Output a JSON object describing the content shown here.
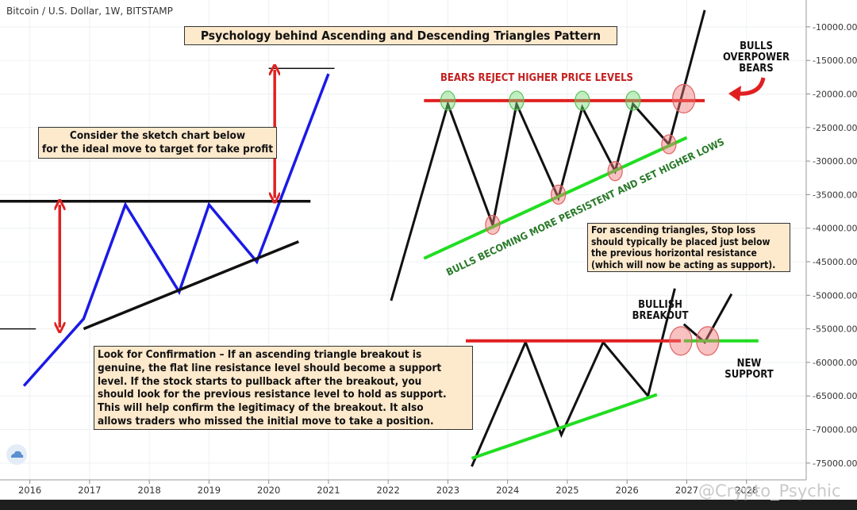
{
  "header": {
    "symbol": "Bitcoin / U.S. Dollar, 1W, BITSTAMP"
  },
  "title": "Psychology behind  Ascending and Descending Triangles Pattern",
  "annotations": {
    "sketch": [
      "Consider the sketch chart below",
      "for the ideal move to target for take profit"
    ],
    "confirmation": [
      "Look for Confirmation – If an ascending triangle breakout is",
      "genuine, the flat line resistance level should become a support",
      "level. If the stock starts to pullback after the breakout, you",
      "should look for the previous resistance level to hold as support.",
      "This will help confirm the legitimacy of the breakout. It also",
      "allows traders who missed the initial move to take a position."
    ],
    "stoploss": [
      "For ascending triangles, Stop loss",
      "should typically be placed just below",
      "the previous horizontal resistance",
      "(which will now be acting as support)."
    ],
    "bears_reject": "BEARS REJECT HIGHER PRICE LEVELS",
    "bulls_persistent": "BULLS BECOMING MORE PERSISTENT AND SET HIGHER LOWS",
    "bulls_overpower": [
      "BULLS",
      "OVERPOWER",
      "BEARS"
    ],
    "bullish_breakout": [
      "BULLISH",
      "BREAKOUT"
    ],
    "new_support": [
      "NEW",
      "SUPPORT"
    ]
  },
  "watermark": "@Crypto_Psychic",
  "colors": {
    "blue": "#1a1ae6",
    "red": "#e02020",
    "green": "#22dd22",
    "black": "#111111",
    "box": "#fde9cc"
  },
  "chart_data": {
    "type": "line",
    "x_ticks": [
      "2016",
      "2017",
      "2018",
      "2019",
      "2020",
      "2021",
      "2022",
      "2023",
      "2024",
      "2025",
      "2026",
      "2027",
      "2028"
    ],
    "y_ticks": [
      "-10000.00",
      "-15000.00",
      "-20000.00",
      "-25000.00",
      "-30000.00",
      "-35000.00",
      "-40000.00",
      "-45000.00",
      "-50000.00",
      "-55000.00",
      "-60000.00",
      "-65000.00",
      "-70000.00",
      "-75000.00"
    ],
    "ylim": [
      -77500,
      -6000
    ],
    "xlim": [
      2015.5,
      2029.0
    ],
    "series": [
      {
        "role": "left-blue-path",
        "x": [
          2015.9,
          2016.9,
          2017.6,
          2018.5,
          2019.0,
          2019.8,
          2021.0
        ],
        "y": [
          -63500,
          -53500,
          -36500,
          -49500,
          -36500,
          -45000,
          -17000
        ]
      },
      {
        "role": "left-resistance",
        "x": [
          2015.5,
          2020.7
        ],
        "y": [
          -36000,
          -36000
        ]
      },
      {
        "role": "left-support",
        "x": [
          2016.9,
          2020.5
        ],
        "y": [
          -55000,
          -42000
        ]
      },
      {
        "role": "left-target",
        "x": [
          2020.0,
          2021.1
        ],
        "y": [
          -16200,
          -16200
        ]
      },
      {
        "role": "left-base",
        "x": [
          2015.4,
          2016.1
        ],
        "y": [
          -55000,
          -55000
        ]
      },
      {
        "role": "top-right-path",
        "x": [
          2022.05,
          2023.0,
          2023.75,
          2024.15,
          2024.85,
          2025.25,
          2025.8,
          2026.1,
          2026.7,
          2027.3
        ],
        "y": [
          -50800,
          -21500,
          -39500,
          -21500,
          -35500,
          -22000,
          -31500,
          -21500,
          -27500,
          -7500
        ]
      },
      {
        "role": "top-right-resistance",
        "x": [
          2022.6,
          2027.3
        ],
        "y": [
          -21000,
          -21000
        ]
      },
      {
        "role": "top-right-support",
        "x": [
          2022.6,
          2027.0
        ],
        "y": [
          -44500,
          -26500
        ]
      },
      {
        "role": "bottom-right-path",
        "x": [
          2023.4,
          2024.3,
          2024.9,
          2025.6,
          2026.35,
          2026.8
        ],
        "y": [
          -75500,
          -57000,
          -70800,
          -57000,
          -65000,
          -49000
        ]
      },
      {
        "role": "bottom-right-resistance",
        "x": [
          2023.3,
          2026.9
        ],
        "y": [
          -56800,
          -56800
        ]
      },
      {
        "role": "bottom-right-support",
        "x": [
          2023.4,
          2026.5
        ],
        "y": [
          -74300,
          -64800
        ]
      },
      {
        "role": "retest-v",
        "x": [
          2026.95,
          2027.3,
          2027.75
        ],
        "y": [
          -54300,
          -57000,
          -49800
        ]
      },
      {
        "role": "new-support-line",
        "x": [
          2026.95,
          2028.2
        ],
        "y": [
          -56800,
          -56800
        ]
      }
    ],
    "arrows": [
      {
        "role": "left-range",
        "x": 2016.5,
        "y": [
          -36500,
          -54800
        ]
      },
      {
        "role": "target-range",
        "x": 2020.1,
        "y": [
          -16400,
          -35500
        ]
      }
    ],
    "circles": [
      {
        "x": 2023.0,
        "y": -21000,
        "color": "green"
      },
      {
        "x": 2024.15,
        "y": -21000,
        "color": "green"
      },
      {
        "x": 2025.25,
        "y": -21000,
        "color": "green"
      },
      {
        "x": 2026.1,
        "y": -21000,
        "color": "green"
      },
      {
        "x": 2023.75,
        "y": -39500,
        "color": "red"
      },
      {
        "x": 2024.85,
        "y": -35000,
        "color": "red"
      },
      {
        "x": 2025.8,
        "y": -31500,
        "color": "red"
      },
      {
        "x": 2026.7,
        "y": -27500,
        "color": "red"
      },
      {
        "x": 2026.95,
        "y": -20700,
        "color": "red"
      },
      {
        "x": 2026.9,
        "y": -56800,
        "color": "red"
      },
      {
        "x": 2027.35,
        "y": -56800,
        "color": "red"
      }
    ]
  }
}
